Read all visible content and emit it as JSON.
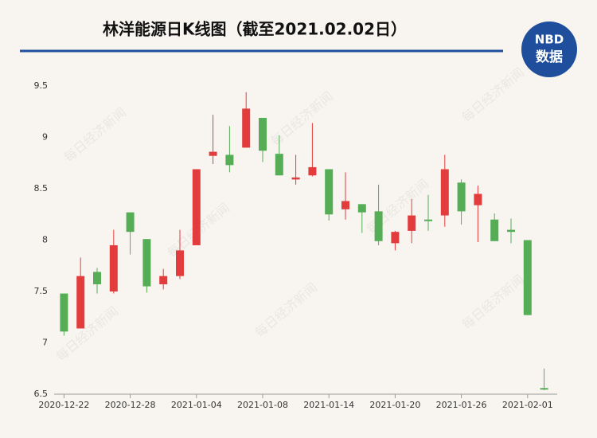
{
  "chart_data": {
    "type": "candlestick",
    "title": "林洋能源日K线图（截至2021.02.02日）",
    "logo": {
      "top": "NBD",
      "bottom": "数据"
    },
    "watermark": "每日经济新闻",
    "categories": [
      "2020-12-22",
      null,
      null,
      null,
      "2020-12-28",
      null,
      null,
      null,
      "2021-01-04",
      null,
      null,
      null,
      "2021-01-08",
      null,
      null,
      null,
      "2021-01-14",
      null,
      null,
      null,
      "2021-01-20",
      null,
      null,
      null,
      "2021-01-26",
      null,
      null,
      null,
      "2021-02-01",
      null
    ],
    "open": [
      7.48,
      7.14,
      7.69,
      7.5,
      8.27,
      8.01,
      7.57,
      7.65,
      7.95,
      8.82,
      8.83,
      8.9,
      9.19,
      8.84,
      8.59,
      8.63,
      8.69,
      8.3,
      8.35,
      8.28,
      7.97,
      8.09,
      8.2,
      8.24,
      8.56,
      8.34,
      8.2,
      8.1,
      8.0,
      6.56
    ],
    "high": [
      7.48,
      7.83,
      7.73,
      8.1,
      8.27,
      8.01,
      7.72,
      8.1,
      8.69,
      9.22,
      9.11,
      9.44,
      9.19,
      9.02,
      8.83,
      9.14,
      8.69,
      8.66,
      8.35,
      8.54,
      8.09,
      8.4,
      8.44,
      8.83,
      8.59,
      8.53,
      8.26,
      8.21,
      8.0,
      6.75
    ],
    "low": [
      7.07,
      7.14,
      7.48,
      7.48,
      7.86,
      7.49,
      7.52,
      7.62,
      7.95,
      8.74,
      8.66,
      8.9,
      8.76,
      8.63,
      8.54,
      8.62,
      8.19,
      8.2,
      8.07,
      7.95,
      7.9,
      7.97,
      8.09,
      8.13,
      8.15,
      7.98,
      7.99,
      7.97,
      7.27,
      6.54
    ],
    "close": [
      7.11,
      7.65,
      7.57,
      7.95,
      8.08,
      7.55,
      7.65,
      7.9,
      8.69,
      8.86,
      8.73,
      9.28,
      8.87,
      8.63,
      8.61,
      8.71,
      8.25,
      8.38,
      8.27,
      7.99,
      8.08,
      8.24,
      8.19,
      8.69,
      8.28,
      8.45,
      7.99,
      8.08,
      7.27,
      6.55
    ],
    "up_color": "#e23c3c",
    "down_color": "#55ad55",
    "ylim": [
      6.5,
      9.5
    ],
    "yticks": [
      6.5,
      7,
      7.5,
      8,
      8.5,
      9,
      9.5
    ],
    "grid": false
  }
}
